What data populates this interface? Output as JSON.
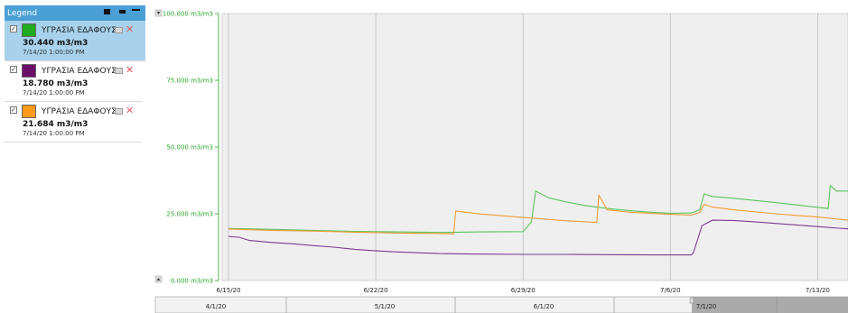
{
  "legend": {
    "title": "Legend",
    "items": [
      {
        "name": "ΥΓΡΑΣΙΑ ΕΔΑΦΟΥΣ",
        "value": "30.440 m3/m3",
        "timestamp": "7/14/20 1:00:00 PM",
        "color": "#1faa1f",
        "checked": "✓",
        "selected": true
      },
      {
        "name": "ΥΓΡΑΣΙΑ ΕΔΑΦΟΥΣ",
        "value": "18.780 m3/m3",
        "timestamp": "7/14/20 1:00:00 PM",
        "color": "#6a0f6a",
        "checked": "✓",
        "selected": false
      },
      {
        "name": "ΥΓΡΑΣΙΑ ΕΔΑΦΟΥΣ",
        "value": "21.684 m3/m3",
        "timestamp": "7/14/20 1:00:00 PM",
        "color": "#ff9a1a",
        "checked": "✓",
        "selected": false
      }
    ],
    "delete_symbol": "✕"
  },
  "chart_data": {
    "type": "line",
    "y_unit": "m3/m3",
    "ylim": [
      0,
      100
    ],
    "y_ticks": [
      "100.000 m3/m3",
      "75.000 m3/m3",
      "50.000 m3/m3",
      "25.000 m3/m3",
      "0.000 m3/m3"
    ],
    "x_ticks": [
      "6/15/20",
      "6/22/20",
      "6/29/20",
      "7/6/20",
      "7/13/20"
    ],
    "xlim": [
      "2020-06-15",
      "2020-07-15"
    ],
    "grid": "vertical",
    "background": "#efefef",
    "series": [
      {
        "color": "#5cc45c",
        "points": [
          [
            0,
            19.5
          ],
          [
            2,
            19.2
          ],
          [
            4,
            18.8
          ],
          [
            6,
            18.4
          ],
          [
            8,
            18.2
          ],
          [
            10,
            18.0
          ],
          [
            12,
            18.2
          ],
          [
            14,
            18.3
          ],
          [
            14.4,
            22
          ],
          [
            14.6,
            33.5
          ],
          [
            15.2,
            31
          ],
          [
            16,
            29.5
          ],
          [
            17,
            28
          ],
          [
            18,
            27
          ],
          [
            19,
            26.2
          ],
          [
            20,
            25.6
          ],
          [
            21,
            25.2
          ],
          [
            22,
            25.3
          ],
          [
            22.4,
            26.5
          ],
          [
            22.6,
            32.5
          ],
          [
            23,
            31.5
          ],
          [
            24,
            30.8
          ],
          [
            25,
            30
          ],
          [
            26,
            29.2
          ],
          [
            27,
            28.3
          ],
          [
            28,
            27.4
          ],
          [
            28.5,
            27
          ],
          [
            28.6,
            35.5
          ],
          [
            28.9,
            33.5
          ],
          [
            29.5,
            33.5
          ],
          [
            30,
            31
          ],
          [
            30.6,
            30.4
          ]
        ]
      },
      {
        "color": "#f29c35",
        "points": [
          [
            0,
            19.3
          ],
          [
            2,
            18.8
          ],
          [
            4,
            18.5
          ],
          [
            6,
            18.1
          ],
          [
            8,
            17.8
          ],
          [
            10,
            17.6
          ],
          [
            10.7,
            17.5
          ],
          [
            10.8,
            26
          ],
          [
            12,
            24.9
          ],
          [
            14,
            23.6
          ],
          [
            16,
            22.4
          ],
          [
            17.5,
            21.8
          ],
          [
            17.6,
            32
          ],
          [
            18,
            26.5
          ],
          [
            19,
            25.6
          ],
          [
            20,
            25.2
          ],
          [
            21,
            24.8
          ],
          [
            22,
            24.5
          ],
          [
            22.4,
            25.5
          ],
          [
            22.6,
            28.5
          ],
          [
            23,
            27.5
          ],
          [
            24,
            26.5
          ],
          [
            26,
            25
          ],
          [
            28,
            23.8
          ],
          [
            30.6,
            21.7
          ]
        ]
      },
      {
        "color": "#7b3c8f",
        "points": [
          [
            0,
            16.5
          ],
          [
            0.5,
            16.2
          ],
          [
            1,
            15
          ],
          [
            2,
            14.3
          ],
          [
            3,
            13.8
          ],
          [
            4,
            13.1
          ],
          [
            5,
            12.5
          ],
          [
            6,
            11.7
          ],
          [
            7,
            11.1
          ],
          [
            8,
            10.7
          ],
          [
            9,
            10.4
          ],
          [
            10,
            10.1
          ],
          [
            11,
            10.0
          ],
          [
            12,
            9.9
          ],
          [
            14,
            9.8
          ],
          [
            16,
            9.8
          ],
          [
            18,
            9.7
          ],
          [
            20,
            9.6
          ],
          [
            22,
            9.6
          ],
          [
            22.1,
            10.5
          ],
          [
            22.5,
            20.5
          ],
          [
            23,
            22.6
          ],
          [
            24,
            22.5
          ],
          [
            25,
            22.0
          ],
          [
            26,
            21.4
          ],
          [
            27,
            20.8
          ],
          [
            28,
            20.2
          ],
          [
            29,
            19.6
          ],
          [
            30,
            19.1
          ],
          [
            30.6,
            18.8
          ]
        ]
      }
    ]
  },
  "navigator": {
    "ticks": [
      "4/1/20",
      "5/1/20",
      "6/1/20",
      "7/1/20"
    ]
  }
}
